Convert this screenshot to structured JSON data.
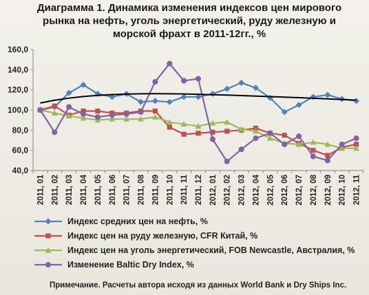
{
  "title_lines": [
    "Диаграмма 1. Динамика изменения индексов цен мирового",
    "рынка на нефть, уголь энергетический, руду железную и",
    "морской фрахт в 2011-12гг., %"
  ],
  "note": "Примечание. Расчеты автора исходя из данных World Bank и Dry Ships Inc.",
  "chart_data": {
    "type": "line",
    "title": "Диаграмма 1. Динамика изменения индексов цен мирового рынка на нефть, уголь энергетический, руду железную и морской фрахт в 2011-12гг., %",
    "ylim": [
      40,
      160
    ],
    "yticks": [
      "40,0",
      "60,0",
      "80,0",
      "100,0",
      "120,0",
      "140,0",
      "160,0"
    ],
    "categories": [
      "2011, 01",
      "2011, 02",
      "2011, 03",
      "2011, 04",
      "2011, 05",
      "2011, 06",
      "2011, 07",
      "2011, 08",
      "2011, 09",
      "2011, 10",
      "2011, 11",
      "2011, 12",
      "2012, 01",
      "2012, 02",
      "2012, 03",
      "2012, 04",
      "2012, 05",
      "2012, 06",
      "2012, 07",
      "2012, 08",
      "2012, 09",
      "2012, 10",
      "2012, 11"
    ],
    "legend_position": "bottom",
    "grid": false,
    "series": [
      {
        "name": "Индекс средних цен на нефть, %",
        "color": "#4f81bd",
        "marker": "diamond",
        "values": [
          100,
          103,
          117,
          125,
          116,
          113,
          116,
          108,
          109,
          108,
          113,
          113,
          116,
          121,
          127,
          122,
          112,
          98,
          105,
          113,
          115,
          111,
          109
        ]
      },
      {
        "name": "Индекс цен на руду железную, CFR Китай, %",
        "color": "#c0504d",
        "marker": "square",
        "values": [
          100,
          104,
          95,
          99,
          99,
          97,
          97,
          99,
          99,
          83,
          76,
          77,
          78,
          79,
          80,
          82,
          77,
          75,
          67,
          60,
          55,
          63,
          66
        ]
      },
      {
        "name": "Индекс цен на уголь энергетический, FOB Newcastle, Австралия, %",
        "color": "#9bbb59",
        "marker": "triangle",
        "values": [
          100,
          97,
          94,
          92,
          90,
          91,
          91,
          91,
          93,
          88,
          86,
          84,
          87,
          88,
          81,
          79,
          72,
          67,
          66,
          68,
          66,
          62,
          62
        ]
      },
      {
        "name": "Изменение Baltic Dry Index, %",
        "color": "#8064a2",
        "marker": "circle",
        "values": [
          100,
          78,
          103,
          96,
          93,
          95,
          96,
          98,
          128,
          146,
          129,
          131,
          71,
          49,
          61,
          72,
          77,
          66,
          74,
          54,
          50,
          66,
          72
        ]
      },
      {
        "trendline": true,
        "color": "#000000",
        "values": [
          107,
          109.7,
          111.8,
          113.4,
          114.5,
          115.3,
          115.8,
          116.1,
          116.2,
          116.1,
          115.9,
          115.6,
          115.2,
          114.8,
          114.3,
          113.8,
          113.3,
          112.8,
          112.3,
          111.7,
          111.1,
          110.4,
          109.8
        ]
      }
    ]
  }
}
